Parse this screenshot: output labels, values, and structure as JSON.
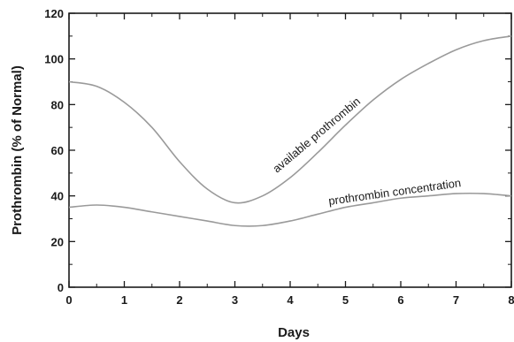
{
  "chart_data": {
    "type": "line",
    "xlabel": "Days",
    "ylabel": "Prothrombin (% of Normal)",
    "xlim": [
      0,
      8
    ],
    "ylim": [
      0,
      120
    ],
    "x_ticks": [
      0,
      1,
      2,
      3,
      4,
      5,
      6,
      7,
      8
    ],
    "y_ticks": [
      0,
      20,
      40,
      60,
      80,
      100,
      120
    ],
    "x_tick_labels": [
      "0",
      "1",
      "2",
      "3",
      "4",
      "5",
      "6",
      "7",
      "8"
    ],
    "y_tick_labels": [
      "0",
      "20",
      "40",
      "60",
      "80",
      "100",
      "120"
    ],
    "grid": false,
    "series": [
      {
        "name": "available prothrombin",
        "color": "#9a9a9a",
        "x": [
          0,
          0.5,
          1,
          1.5,
          2,
          2.5,
          3,
          3.5,
          4,
          4.5,
          5,
          5.5,
          6,
          6.5,
          7,
          7.5,
          8
        ],
        "y": [
          90,
          88,
          81,
          70,
          55,
          43,
          37,
          40,
          48,
          59,
          71,
          82,
          91,
          98,
          104,
          108,
          110
        ]
      },
      {
        "name": "prothrombin concentration",
        "color": "#9a9a9a",
        "x": [
          0,
          0.5,
          1,
          1.5,
          2,
          2.5,
          3,
          3.5,
          4,
          4.5,
          5,
          5.5,
          6,
          6.5,
          7,
          7.5,
          8
        ],
        "y": [
          35,
          36,
          35,
          33,
          31,
          29,
          27,
          27,
          29,
          32,
          35,
          37,
          39,
          40,
          41,
          41,
          40
        ]
      }
    ],
    "annotations": [
      "available prothrombin",
      "prothrombin concentration"
    ]
  }
}
